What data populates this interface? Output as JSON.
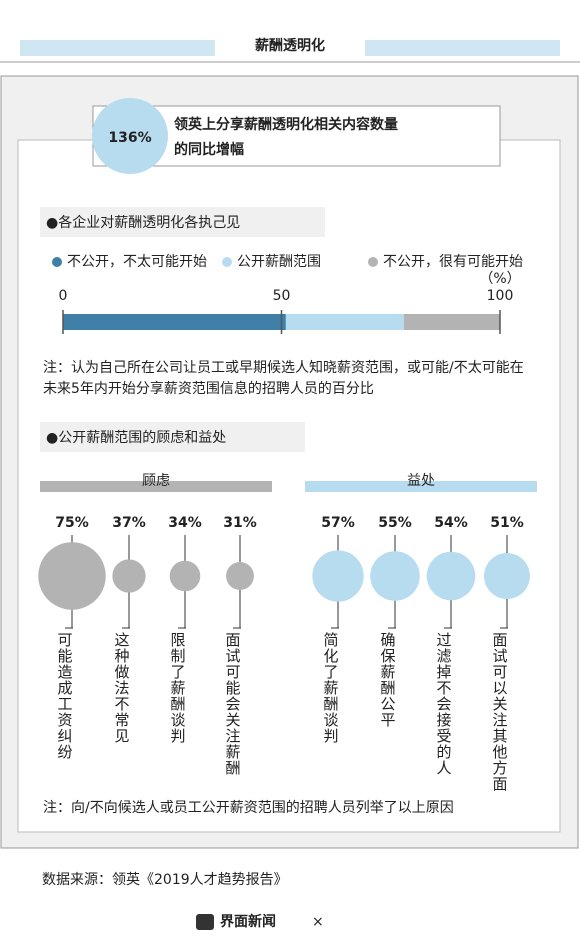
{
  "header": {
    "title": "薪酬透明化"
  },
  "highlight": {
    "value_label": "136%",
    "text_lines": [
      "领英上分享薪酬透明化相关内容数量",
      "的同比增幅"
    ]
  },
  "section1": {
    "heading": "●各企业对薪酬透明化各执己见",
    "chart_data": {
      "type": "stacked-bar",
      "series": [
        {
          "name": "不公开，不太可能开始",
          "color": "#3f7fa8",
          "values": [
            51
          ]
        },
        {
          "name": "公开薪酬范围",
          "color": "#b7dcef",
          "values": [
            27
          ]
        },
        {
          "name": "不公开，很有可能开始",
          "color": "#b3b3b3",
          "values": [
            22
          ]
        }
      ],
      "xlim": [
        0,
        100
      ],
      "xticks": [
        0,
        50,
        100
      ],
      "unit": "（%）"
    },
    "note_lines": [
      "注：认为自己所在公司让员工或早期候选人知晓薪资范围，或可能/不太可能在",
      "未来5年内开始分享薪资范围信息的招聘人员的百分比"
    ]
  },
  "section2": {
    "heading": "●公开薪酬范围的顾虑和益处",
    "groups": [
      {
        "title": "顾虑",
        "color": "#b3b3b3",
        "values": [
          75,
          37,
          34,
          31
        ],
        "value_labels": [
          "75%",
          "37%",
          "34%",
          "31%"
        ],
        "labels": [
          "可能造成工资纠纷",
          "这种做法不常见",
          "限制了薪酬谈判",
          "面试可能会关注薪酬"
        ]
      },
      {
        "title": "益处",
        "color": "#b7dcef",
        "values": [
          57,
          55,
          54,
          51
        ],
        "value_labels": [
          "57%",
          "55%",
          "54%",
          "51%"
        ],
        "labels": [
          "简化了薪酬谈判",
          "确保薪酬公平",
          "过滤掉不会接受的人",
          "面试可以关注其他方面"
        ]
      }
    ],
    "note": "注：向/不向候选人或员工公开薪资范围的招聘人员列举了以上原因"
  },
  "source": "数据来源：领英《2019人才趋势报告》",
  "footer": {
    "brand": "界面新闻",
    "separator": "×"
  }
}
